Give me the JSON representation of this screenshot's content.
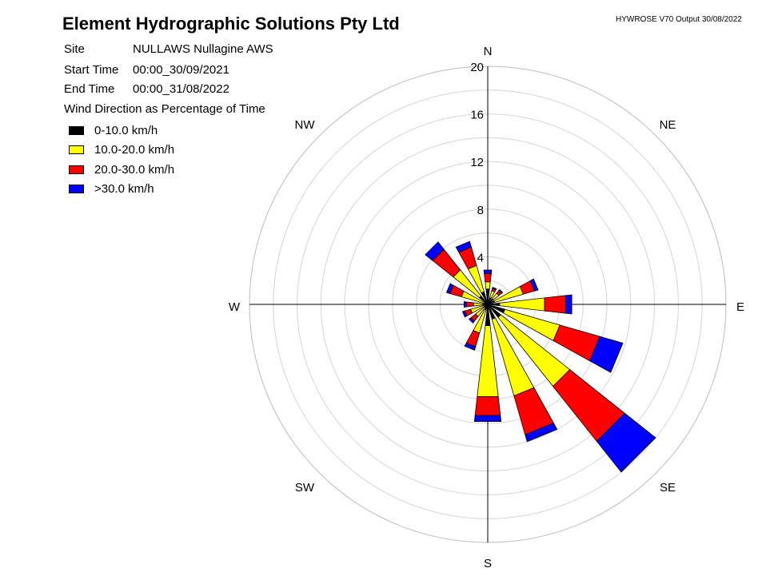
{
  "header": {
    "title": "Element Hydrographic Solutions Pty Ltd",
    "version": "HYWROSE V70  Output 30/08/2022"
  },
  "meta": [
    {
      "label": "Site",
      "value": "NULLAWS  Nullagine AWS"
    },
    {
      "label": "Start Time",
      "value": "00:00_30/09/2021"
    },
    {
      "label": "End Time",
      "value": "00:00_31/08/2022"
    }
  ],
  "chart_data": {
    "type": "wind-rose",
    "title": "Wind Direction as Percentage of Time",
    "radial_max": 20,
    "radial_ticks": [
      4,
      8,
      12,
      16,
      20
    ],
    "ring_step": 2,
    "compass_labels": [
      "N",
      "NE",
      "E",
      "SE",
      "S",
      "SW",
      "W",
      "NW"
    ],
    "series": [
      {
        "name": "0-10.0 km/h",
        "color": "#000000"
      },
      {
        "name": "10.0-20.0 km/h",
        "color": "#ffff00"
      },
      {
        "name": "20.0-30.0 km/h",
        "color": "#ff0000"
      },
      {
        "name": ">30.0 km/h",
        "color": "#0000ff"
      }
    ],
    "directions": [
      {
        "bearing": 0,
        "values": [
          1.3,
          0.6,
          0.7,
          0.3
        ]
      },
      {
        "bearing": 22.5,
        "values": [
          0.6,
          0.6,
          0.2,
          0.1
        ]
      },
      {
        "bearing": 45,
        "values": [
          0.6,
          0.6,
          0.3,
          0.1
        ]
      },
      {
        "bearing": 67.5,
        "values": [
          0.6,
          2.5,
          1.0,
          0.3
        ]
      },
      {
        "bearing": 90,
        "values": [
          1.0,
          3.8,
          1.8,
          0.5
        ]
      },
      {
        "bearing": 112.5,
        "values": [
          1.5,
          4.8,
          3.5,
          2.0
        ]
      },
      {
        "bearing": 135,
        "values": [
          1.4,
          7.4,
          5.9,
          3.3
        ]
      },
      {
        "bearing": 157.5,
        "values": [
          1.3,
          6.7,
          3.4,
          0.6
        ]
      },
      {
        "bearing": 180,
        "values": [
          1.8,
          6.0,
          1.6,
          0.5
        ]
      },
      {
        "bearing": 202.5,
        "values": [
          0.5,
          2.0,
          1.2,
          0.3
        ]
      },
      {
        "bearing": 225,
        "values": [
          0.3,
          1.0,
          0.5,
          0.2
        ]
      },
      {
        "bearing": 247.5,
        "values": [
          0.3,
          1.2,
          0.5,
          0.2
        ]
      },
      {
        "bearing": 270,
        "values": [
          0.4,
          0.8,
          0.6,
          0.2
        ]
      },
      {
        "bearing": 292.5,
        "values": [
          0.3,
          2.0,
          1.0,
          0.3
        ]
      },
      {
        "bearing": 315,
        "values": [
          0.9,
          2.8,
          2.2,
          0.8
        ]
      },
      {
        "bearing": 337.5,
        "values": [
          1.1,
          2.3,
          1.6,
          0.5
        ]
      }
    ]
  }
}
